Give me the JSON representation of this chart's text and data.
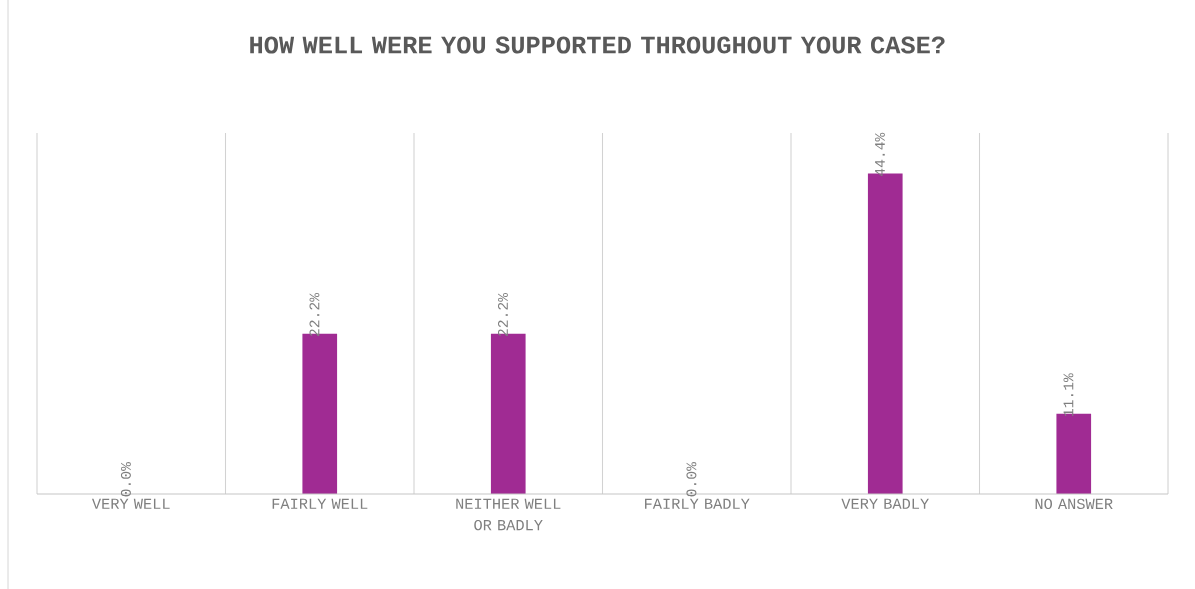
{
  "chart_data": {
    "type": "bar",
    "title": "HOW WELL WERE YOU SUPPORTED THROUGHOUT YOUR CASE?",
    "categories": [
      "VERY WELL",
      "FAIRLY WELL",
      "NEITHER WELL OR BADLY",
      "FAIRLY BADLY",
      "VERY BADLY",
      "NO ANSWER"
    ],
    "values": [
      0.0,
      22.2,
      22.2,
      0.0,
      44.4,
      11.1
    ],
    "value_labels": [
      "0.0%",
      "22.2%",
      "22.2%",
      "0.0%",
      "44.4%",
      "11.1%"
    ],
    "color": "#a02b93",
    "ylim": [
      0,
      50
    ],
    "grid": "x",
    "tick_labels": "x"
  }
}
